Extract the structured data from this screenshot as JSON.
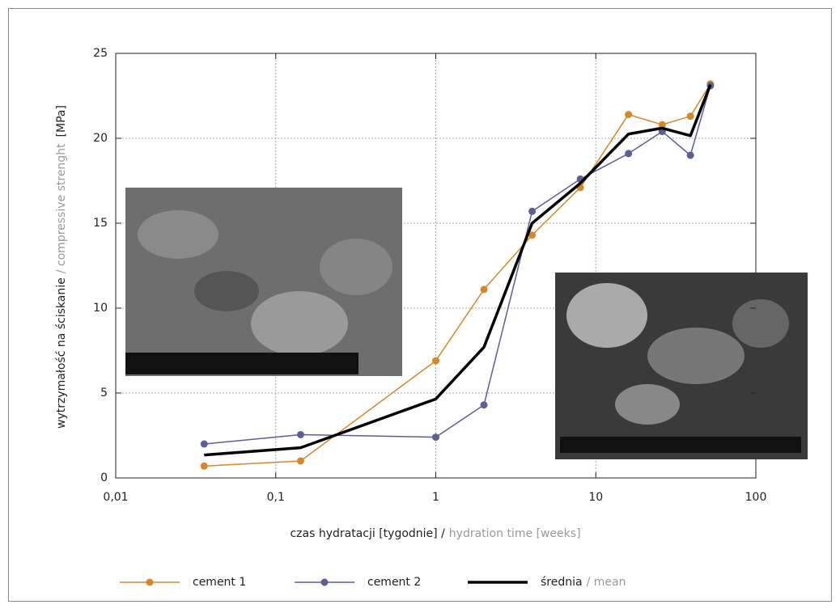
{
  "chart_data": {
    "type": "line",
    "x_label": {
      "main": "czas hydratacji [tygodnie] /",
      "secondary": "hydration time [weeks]"
    },
    "y_label": {
      "main": "wytrzymałość na ściskanie",
      "secondary": "/ compressive strenght",
      "unit": "[MPa]"
    },
    "x": [
      0.0357,
      0.143,
      1,
      2,
      4,
      8,
      16,
      26,
      39,
      52
    ],
    "series": [
      {
        "name": "cement 1",
        "color": "#d4882a",
        "markers": true,
        "values": [
          0.7,
          1.0,
          6.9,
          11.1,
          14.3,
          17.1,
          21.4,
          20.8,
          21.3,
          23.2
        ]
      },
      {
        "name": "cement 2",
        "color": "#5c5e96",
        "markers": true,
        "values": [
          2.0,
          2.55,
          2.4,
          4.3,
          15.7,
          17.6,
          19.1,
          20.4,
          19.0,
          23.1
        ]
      },
      {
        "name": "średnia",
        "name_secondary": "/ mean",
        "color": "#000000",
        "markers": false,
        "values": [
          1.35,
          1.78,
          4.65,
          7.7,
          15.0,
          17.35,
          20.25,
          20.6,
          20.15,
          23.15
        ]
      }
    ],
    "xscale": "log",
    "xlim": [
      0.01,
      100
    ],
    "xticks": [
      {
        "value": 0.01,
        "label": "0,01"
      },
      {
        "value": 0.1,
        "label": "0,1"
      },
      1,
      10,
      100
    ],
    "ylim": [
      0,
      25
    ],
    "yticks": [
      0,
      5,
      10,
      15,
      20,
      25
    ],
    "grid": true
  }
}
